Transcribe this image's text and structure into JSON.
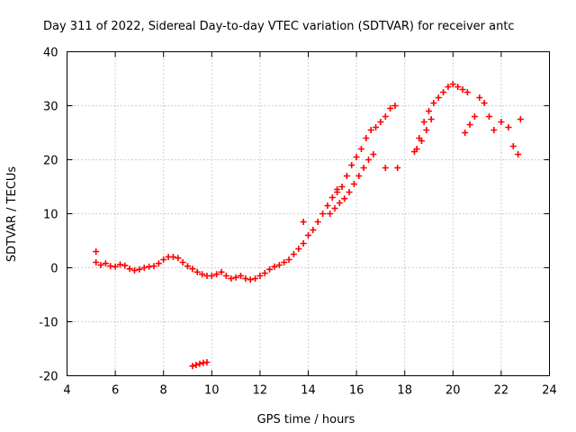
{
  "chart_data": {
    "type": "scatter",
    "title": "Day 311 of 2022, Sidereal Day-to-day VTEC variation (SDTVAR) for receiver antc",
    "xlabel": "GPS time / hours",
    "ylabel": "SDTVAR / TECUs",
    "xlim": [
      4,
      24
    ],
    "ylim": [
      -20,
      40
    ],
    "xticks": [
      4,
      6,
      8,
      10,
      12,
      14,
      16,
      18,
      20,
      22,
      24
    ],
    "yticks": [
      -20,
      -10,
      0,
      10,
      20,
      30,
      40
    ],
    "grid": true,
    "marker": "+",
    "color": "#ff0000",
    "series": [
      {
        "name": "main-trace",
        "x": [
          5.2,
          5.4,
          5.6,
          5.8,
          6.0,
          6.2,
          6.4,
          6.6,
          6.8,
          7.0,
          7.2,
          7.4,
          7.6,
          7.8,
          8.0,
          8.2,
          8.4,
          8.6,
          8.8,
          9.0,
          9.2,
          9.4,
          9.6,
          9.8,
          10.0,
          10.2,
          10.4,
          10.6,
          10.8,
          11.0,
          11.2,
          11.4,
          11.6,
          11.8,
          12.0,
          12.2,
          12.4,
          12.6,
          12.8,
          13.0,
          13.2,
          13.4,
          13.6,
          13.8,
          14.0,
          14.2,
          14.4,
          14.6,
          14.8,
          15.0,
          15.2,
          15.4,
          15.6,
          15.8,
          16.0,
          16.2,
          16.4,
          16.6,
          16.8,
          17.0,
          17.2,
          17.4,
          17.6
        ],
        "y": [
          1.0,
          0.5,
          0.8,
          0.3,
          0.2,
          0.6,
          0.4,
          -0.2,
          -0.5,
          -0.3,
          0.0,
          0.2,
          0.3,
          0.8,
          1.5,
          2.0,
          2.0,
          1.8,
          1.0,
          0.3,
          -0.2,
          -0.8,
          -1.2,
          -1.5,
          -1.5,
          -1.2,
          -0.8,
          -1.5,
          -2.0,
          -1.8,
          -1.5,
          -2.0,
          -2.2,
          -2.0,
          -1.5,
          -1.0,
          -0.3,
          0.2,
          0.5,
          1.0,
          1.5,
          2.5,
          3.5,
          4.5,
          6.0,
          7.0,
          8.5,
          10.0,
          11.5,
          13.0,
          14.0,
          15.0,
          17.0,
          19.0,
          20.5,
          22.0,
          24.0,
          25.5,
          26.0,
          27.0,
          28.0,
          29.5,
          30.0
        ]
      },
      {
        "name": "lower-branch",
        "x": [
          14.9,
          15.1,
          15.3,
          15.5,
          15.7,
          15.9,
          16.1,
          16.3,
          16.5,
          16.7
        ],
        "y": [
          10.0,
          11.0,
          12.0,
          12.8,
          14.0,
          15.5,
          17.0,
          18.5,
          20.0,
          21.0
        ]
      },
      {
        "name": "outlier-cluster",
        "x": [
          9.2,
          9.35,
          9.5,
          9.65,
          9.8
        ],
        "y": [
          -18.2,
          -18.0,
          -17.8,
          -17.6,
          -17.5
        ]
      },
      {
        "name": "isolated-points",
        "x": [
          5.2,
          13.8,
          15.2,
          17.2,
          17.7
        ],
        "y": [
          3.0,
          8.5,
          14.5,
          18.5,
          18.5
        ]
      },
      {
        "name": "evening-trace",
        "x": [
          18.4,
          18.6,
          18.8,
          19.0,
          19.2,
          19.4,
          19.6,
          19.8,
          20.0,
          20.2,
          20.4,
          20.6
        ],
        "y": [
          21.5,
          24.0,
          27.0,
          29.0,
          30.5,
          31.5,
          32.5,
          33.5,
          34.0,
          33.5,
          33.0,
          32.5
        ]
      },
      {
        "name": "evening-lower",
        "x": [
          18.5,
          18.7,
          18.9,
          19.1
        ],
        "y": [
          22.0,
          23.5,
          25.5,
          27.5
        ]
      },
      {
        "name": "late-trace",
        "x": [
          20.5,
          20.7,
          20.9,
          21.1,
          21.3,
          21.5,
          21.7,
          22.0,
          22.3,
          22.5,
          22.7,
          22.8
        ],
        "y": [
          25.0,
          26.5,
          28.0,
          31.5,
          30.5,
          28.0,
          25.5,
          27.0,
          26.0,
          22.5,
          21.0,
          27.5
        ]
      }
    ]
  }
}
